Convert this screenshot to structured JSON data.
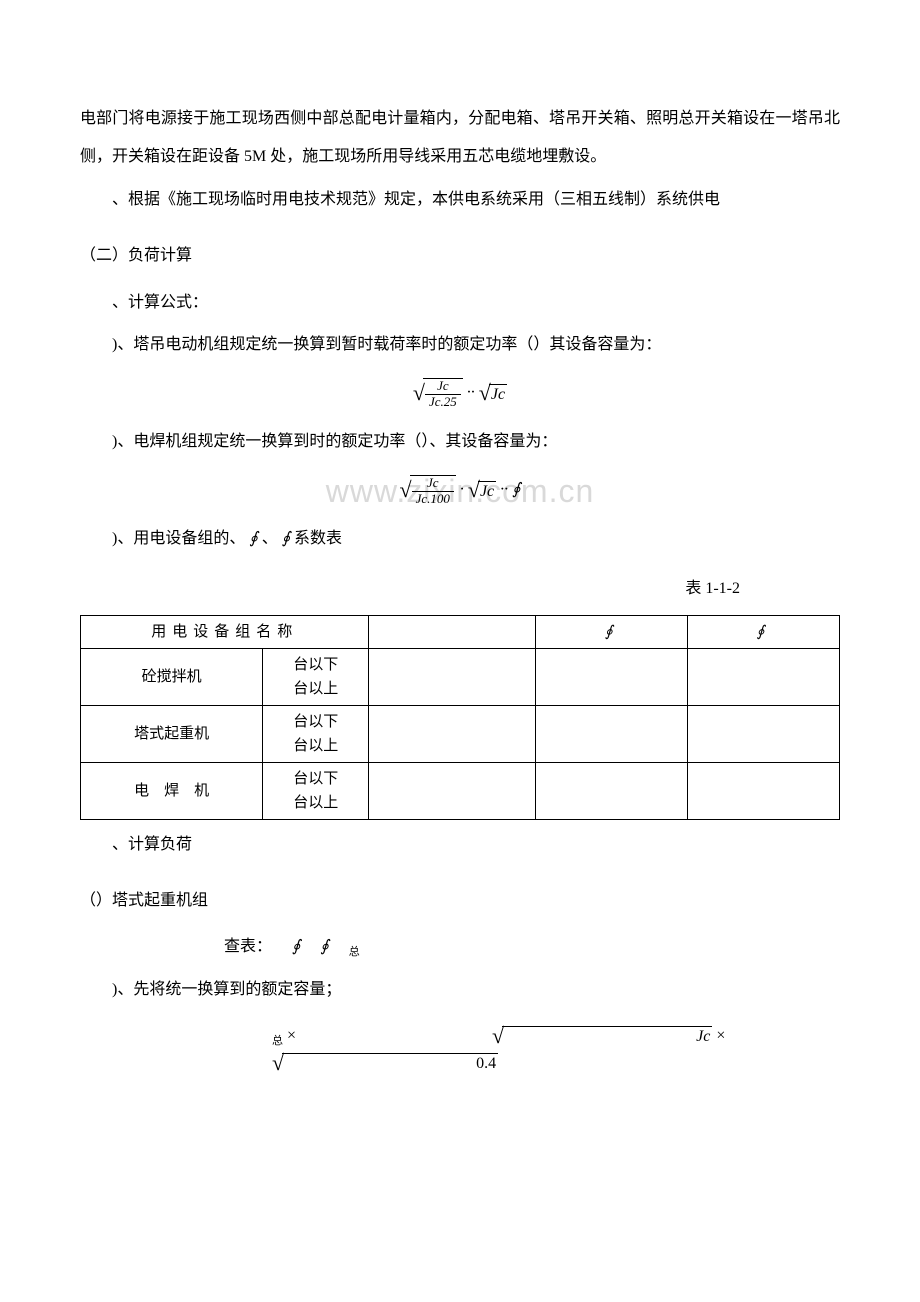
{
  "text": {
    "p1": "电部门将电源接于施工现场西侧中部总配电计量箱内，分配电箱、塔吊开关箱、照明总开关箱设在一塔吊北侧，开关箱设在距设备 5M 处，施工现场所用导线采用五芯电缆地埋敷设。",
    "p2": "、根据《施工现场临时用电技术规范》规定，本供电系统采用（三相五线制）系统供电",
    "s1": "（二）负荷计算",
    "p3": "、计算公式：",
    "p4": ")、塔吊电动机组规定统一换算到暂时载荷率时的额定功率（）其设备容量为：",
    "p5": ")、电焊机组规定统一换算到时的额定功率（）、其设备容量为：",
    "p6": ")、用电设备组的、",
    "p6b": "系数表",
    "tlabel": "表 1-1-2",
    "p7": "、计算负荷",
    "s2": "（）塔式起重机组",
    "p8": "查表：",
    "p9": ")、先将统一换算到的额定容量；",
    "watermark": "www.zixin.com.cn"
  },
  "formula": {
    "f1_num": "Jc",
    "f1_den": "Jc.25",
    "f1_tail": "Jc",
    "f2_num": "Jc",
    "f2_den": "Jc.100",
    "f2_mid": "Jc",
    "f3_a": "Jc",
    "f3_b": "0.4",
    "sub_zong": "总",
    "dots": "··",
    "dot": "·"
  },
  "symbols": {
    "phi": "∮",
    "mult": "×"
  },
  "table": {
    "header": {
      "c1": "用电设备组名称",
      "c3": "",
      "c4": "∮",
      "c5": "∮"
    },
    "rows": [
      {
        "name": "砼搅拌机",
        "sub1": "台以下",
        "sub2": "台以上"
      },
      {
        "name": "塔式起重机",
        "sub1": "台以下",
        "sub2": "台以上"
      },
      {
        "name": "电　焊　机",
        "sub1": "台以下",
        "sub2": "台以上"
      }
    ]
  },
  "colors": {
    "text": "#000000",
    "background": "#ffffff",
    "watermark": "#d9d9d9",
    "border": "#000000"
  },
  "typography": {
    "body_font": "SimSun",
    "body_size_pt": 12,
    "line_height": 2.4,
    "formula_font": "Times New Roman"
  }
}
